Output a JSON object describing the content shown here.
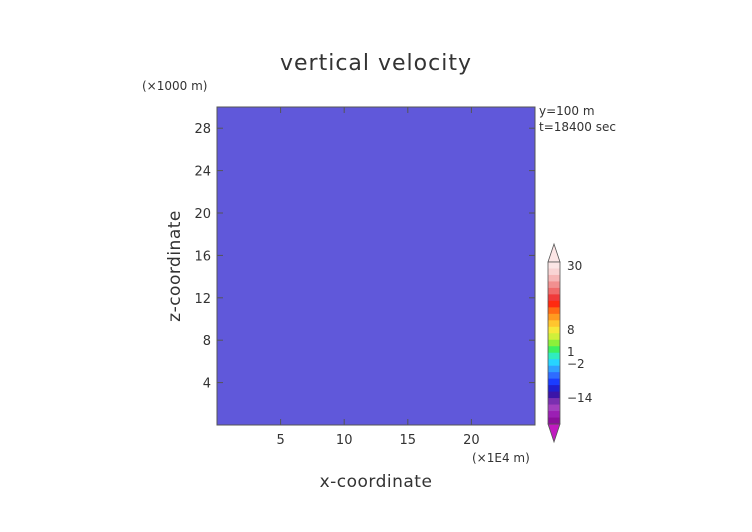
{
  "chart_data": {
    "type": "heatmap",
    "title": "vertical velocity",
    "xlabel": "x-coordinate",
    "ylabel": "z-coordinate",
    "x_unit": "(×1E4 m)",
    "y_unit": "(×1000 m)",
    "annotations": [
      "y=100 m",
      "t=18400 sec"
    ],
    "x_ticks": [
      5,
      10,
      15,
      20
    ],
    "y_ticks": [
      4,
      8,
      12,
      16,
      20,
      24,
      28
    ],
    "xlim": [
      0,
      25
    ],
    "ylim": [
      0,
      30
    ],
    "colorbar": {
      "tick_labels": [
        "30",
        "8",
        "1",
        "−2",
        "−14"
      ],
      "levels": [
        -20,
        -17,
        -14,
        -11,
        -8,
        -6,
        -4,
        -3,
        -2,
        -1,
        0,
        1,
        2,
        3,
        4,
        5,
        6,
        7,
        8,
        11,
        15,
        19,
        23,
        27,
        30
      ],
      "colors": [
        "#8b0f9b",
        "#9b1fb4",
        "#a23fbf",
        "#7a2fb0",
        "#3b14a8",
        "#1f1fd0",
        "#1a3cff",
        "#2e6cff",
        "#2fa0ff",
        "#27d4ff",
        "#30ecc0",
        "#3cf060",
        "#8cf03a",
        "#d0f03a",
        "#f7e83a",
        "#ffc62e",
        "#ff9a20",
        "#ff6a14",
        "#ff2a10",
        "#f03a3a",
        "#f06a6a",
        "#f29090",
        "#f6b6b6",
        "#f9d4d4",
        "#fce6e6"
      ],
      "min_arrow_color": "#c01ac0",
      "max_arrow_color": "#fce6e6"
    }
  }
}
